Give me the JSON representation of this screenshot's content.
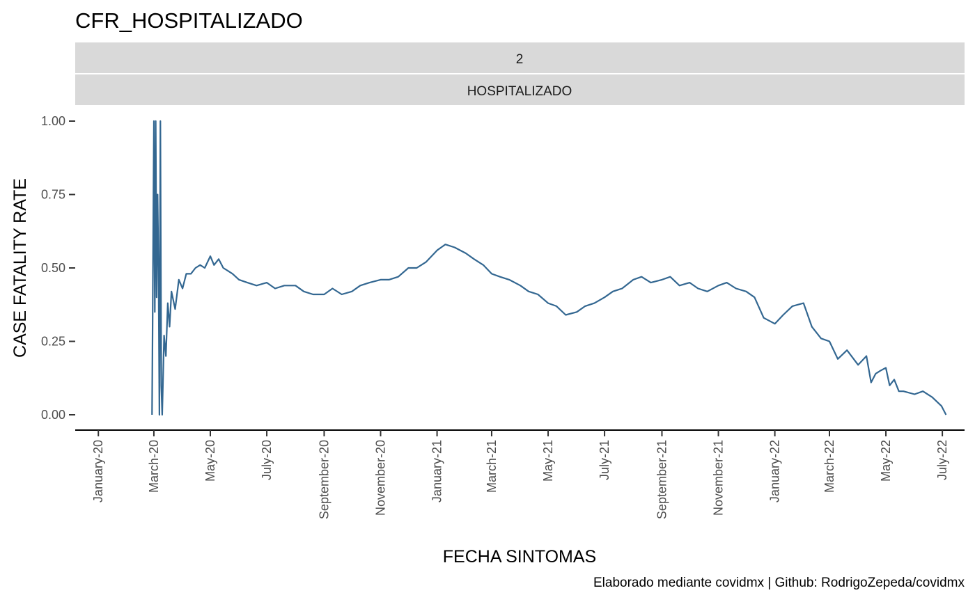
{
  "chart_data": {
    "type": "line",
    "title": "CFR_HOSPITALIZADO",
    "facet_strips": [
      "2",
      "HOSPITALIZADO"
    ],
    "xlabel": "FECHA SINTOMAS",
    "ylabel": "CASE FATALITY RATE",
    "caption": "Elaborado mediante covidmx | Github: RodrigoZepeda/covidmx",
    "ylim": [
      0,
      1
    ],
    "y_ticks": [
      0,
      0.25,
      0.5,
      0.75,
      1.0
    ],
    "y_tick_labels": [
      "0.00",
      "0.25",
      "0.50",
      "0.75",
      "1.00"
    ],
    "x_tick_dates": [
      "2020-01-01",
      "2020-03-01",
      "2020-05-01",
      "2020-07-01",
      "2020-09-01",
      "2020-11-01",
      "2021-01-01",
      "2021-03-01",
      "2021-05-01",
      "2021-07-01",
      "2021-09-01",
      "2021-11-01",
      "2022-01-01",
      "2022-03-01",
      "2022-05-01",
      "2022-07-01"
    ],
    "x_tick_labels": [
      "January-20",
      "March-20",
      "May-20",
      "July-20",
      "September-20",
      "November-20",
      "January-21",
      "March-21",
      "May-21",
      "July-21",
      "September-21",
      "November-21",
      "January-22",
      "March-22",
      "May-22",
      "July-22"
    ],
    "xlim": [
      "2019-12-07",
      "2022-07-25"
    ],
    "grid": false,
    "legend": "none",
    "line_color": "#336791",
    "series": [
      {
        "x": [
          "2020-02-28",
          "2020-03-01",
          "2020-03-02",
          "2020-03-03",
          "2020-03-04",
          "2020-03-05",
          "2020-03-06",
          "2020-03-07",
          "2020-03-08",
          "2020-03-09",
          "2020-03-10",
          "2020-03-12",
          "2020-03-14",
          "2020-03-16",
          "2020-03-18",
          "2020-03-20",
          "2020-03-24",
          "2020-03-28",
          "2020-04-01",
          "2020-04-05",
          "2020-04-10",
          "2020-04-15",
          "2020-04-20",
          "2020-04-25",
          "2020-05-01",
          "2020-05-05",
          "2020-05-10",
          "2020-05-15",
          "2020-05-20",
          "2020-05-25",
          "2020-06-01",
          "2020-06-10",
          "2020-06-20",
          "2020-07-01",
          "2020-07-10",
          "2020-07-20",
          "2020-08-01",
          "2020-08-10",
          "2020-08-20",
          "2020-09-01",
          "2020-09-10",
          "2020-09-20",
          "2020-10-01",
          "2020-10-10",
          "2020-10-20",
          "2020-11-01",
          "2020-11-10",
          "2020-11-20",
          "2020-12-01",
          "2020-12-10",
          "2020-12-20",
          "2021-01-01",
          "2021-01-10",
          "2021-01-20",
          "2021-02-01",
          "2021-02-10",
          "2021-02-20",
          "2021-03-01",
          "2021-03-10",
          "2021-03-20",
          "2021-04-01",
          "2021-04-10",
          "2021-04-20",
          "2021-05-01",
          "2021-05-10",
          "2021-05-20",
          "2021-06-01",
          "2021-06-10",
          "2021-06-20",
          "2021-07-01",
          "2021-07-10",
          "2021-07-20",
          "2021-08-01",
          "2021-08-10",
          "2021-08-20",
          "2021-09-01",
          "2021-09-10",
          "2021-09-20",
          "2021-10-01",
          "2021-10-10",
          "2021-10-20",
          "2021-11-01",
          "2021-11-10",
          "2021-11-20",
          "2021-12-01",
          "2021-12-10",
          "2021-12-20",
          "2022-01-01",
          "2022-01-10",
          "2022-01-20",
          "2022-02-01",
          "2022-02-10",
          "2022-02-20",
          "2022-03-01",
          "2022-03-10",
          "2022-03-20",
          "2022-04-01",
          "2022-04-10",
          "2022-04-15",
          "2022-04-20",
          "2022-04-25",
          "2022-05-01",
          "2022-05-05",
          "2022-05-10",
          "2022-05-15",
          "2022-05-20",
          "2022-06-01",
          "2022-06-10",
          "2022-06-20",
          "2022-06-30",
          "2022-07-05"
        ],
        "values": [
          0.0,
          1.0,
          0.35,
          1.0,
          0.4,
          0.75,
          0.5,
          0.0,
          1.0,
          0.1,
          0.0,
          0.27,
          0.2,
          0.38,
          0.3,
          0.42,
          0.36,
          0.46,
          0.43,
          0.48,
          0.48,
          0.5,
          0.51,
          0.5,
          0.54,
          0.51,
          0.53,
          0.5,
          0.49,
          0.48,
          0.46,
          0.45,
          0.44,
          0.45,
          0.43,
          0.44,
          0.44,
          0.42,
          0.41,
          0.41,
          0.43,
          0.41,
          0.42,
          0.44,
          0.45,
          0.46,
          0.46,
          0.47,
          0.5,
          0.5,
          0.52,
          0.56,
          0.58,
          0.57,
          0.55,
          0.53,
          0.51,
          0.48,
          0.47,
          0.46,
          0.44,
          0.42,
          0.41,
          0.38,
          0.37,
          0.34,
          0.35,
          0.37,
          0.38,
          0.4,
          0.42,
          0.43,
          0.46,
          0.47,
          0.45,
          0.46,
          0.47,
          0.44,
          0.45,
          0.43,
          0.42,
          0.44,
          0.45,
          0.43,
          0.42,
          0.4,
          0.33,
          0.31,
          0.34,
          0.37,
          0.38,
          0.3,
          0.26,
          0.25,
          0.19,
          0.22,
          0.17,
          0.2,
          0.11,
          0.14,
          0.15,
          0.16,
          0.1,
          0.12,
          0.08,
          0.08,
          0.07,
          0.08,
          0.06,
          0.03,
          0.0
        ]
      }
    ]
  }
}
